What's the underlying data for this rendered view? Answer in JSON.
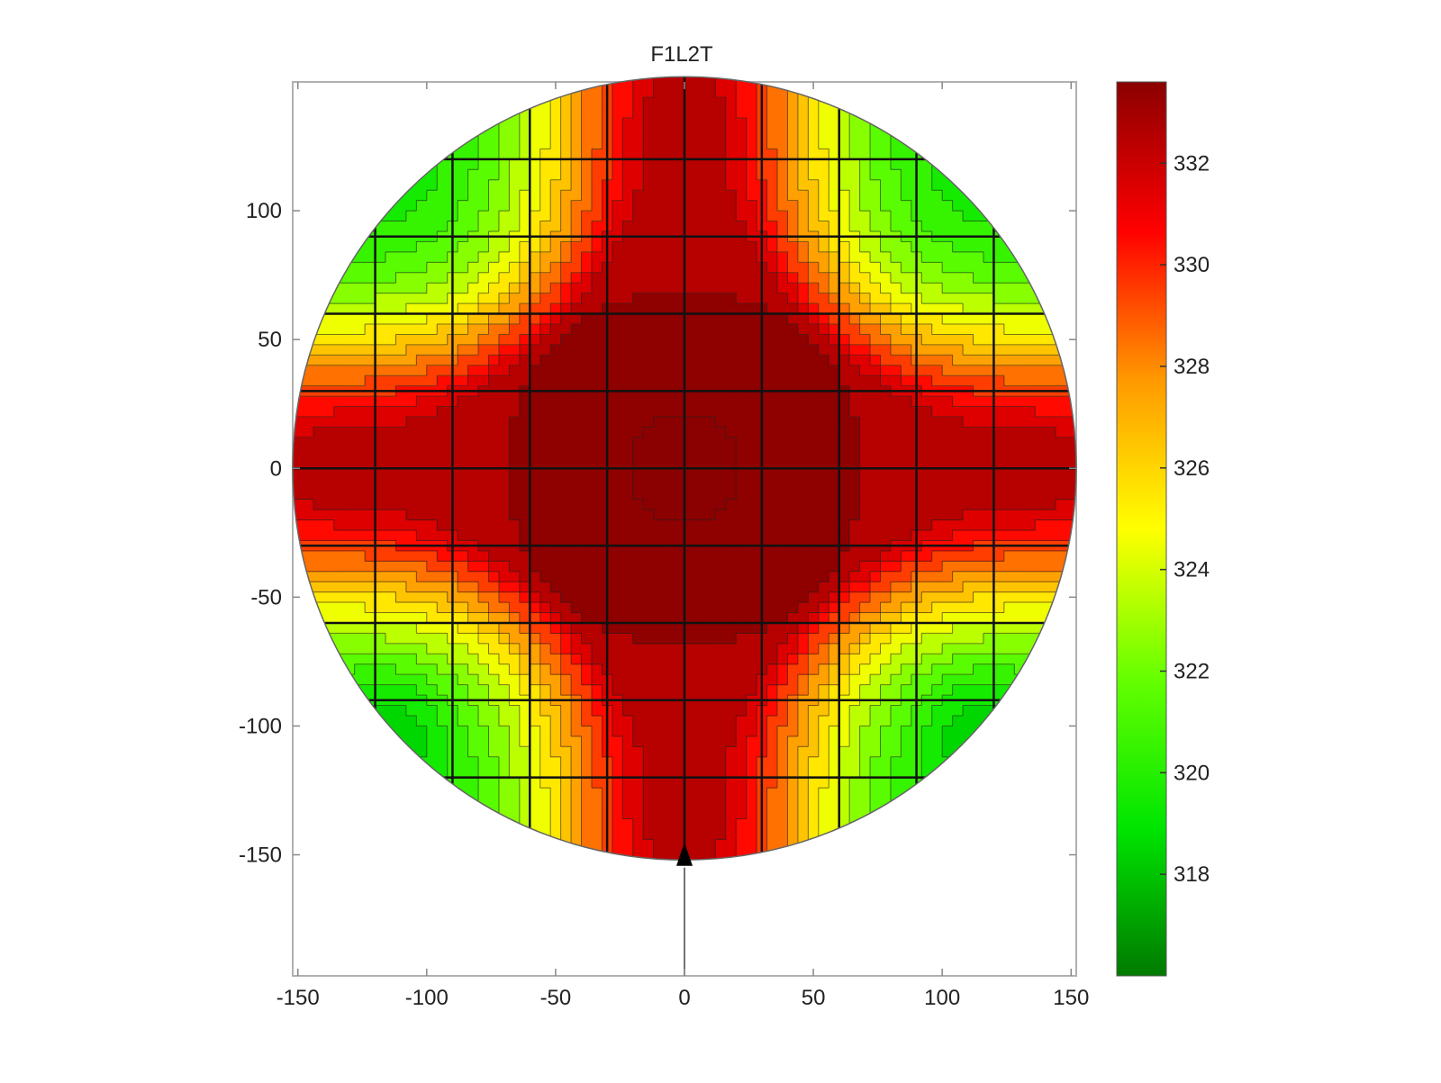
{
  "chart_data": {
    "type": "heatmap",
    "title": "F1L2T",
    "xlabel": "",
    "ylabel": "",
    "xlim": [
      -152,
      152
    ],
    "ylim": [
      -197,
      150
    ],
    "x_ticks": [
      -150,
      -100,
      -50,
      0,
      50,
      100,
      150
    ],
    "y_ticks": [
      -150,
      -100,
      -50,
      0,
      50,
      100
    ],
    "colorbar": {
      "range": [
        316.0,
        333.6
      ],
      "ticks": [
        318,
        320,
        322,
        324,
        326,
        328,
        330,
        332
      ],
      "colors": [
        "#007a00",
        "#00e600",
        "#66ff00",
        "#ffff00",
        "#ff9900",
        "#ff0000",
        "#8b0000"
      ]
    },
    "wafer": {
      "center": [
        0,
        0
      ],
      "radius": 152
    },
    "die_grid": {
      "x_lines": [
        -120,
        -90,
        -60,
        -30,
        0,
        30,
        60,
        90,
        120
      ],
      "y_lines": [
        120,
        90,
        60,
        30,
        0,
        -30,
        -60,
        -90,
        -120
      ]
    },
    "model": {
      "base": 318.5,
      "cross_amp": 14.2,
      "cross_width": 60,
      "center_amp": 1.5,
      "corner_dip": -1.5,
      "contour_step": 1
    },
    "notch_marker": {
      "x": 0,
      "y": -155
    }
  }
}
